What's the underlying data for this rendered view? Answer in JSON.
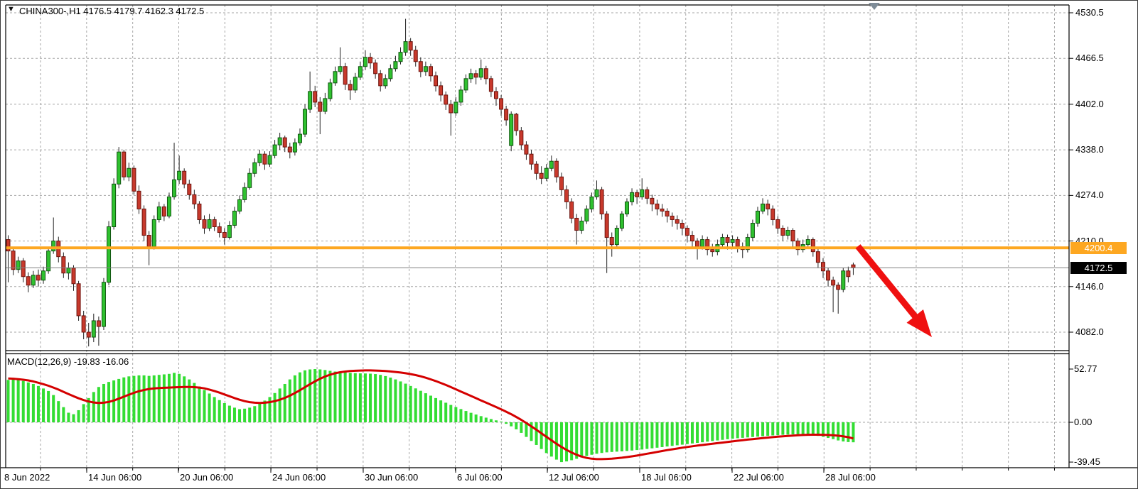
{
  "ui": {
    "title_text": "CHINA300-,H1  4176.5 4179.7 4162.3 4172.5",
    "macd_label": "MACD(12,26,9) -19.83 -16.06"
  },
  "chart_data": {
    "type": "candlestick",
    "symbol": "CHINA300-",
    "timeframe": "H1",
    "ohlc_display": {
      "open": 4176.5,
      "high": 4179.7,
      "low": 4162.3,
      "close": 4172.5
    },
    "price_axis": {
      "ticks": [
        4530.5,
        4466.5,
        4402.0,
        4338.0,
        4274.0,
        4210.0,
        4146.0,
        4082.0
      ]
    },
    "time_axis": {
      "labels": [
        "8 Jun 2022",
        "14 Jun 06:00",
        "20 Jun 06:00",
        "24 Jun 06:00",
        "30 Jun 06:00",
        "6 Jul 06:00",
        "12 Jul 06:00",
        "18 Jul 06:00",
        "22 Jul 06:00",
        "28 Jul 06:00"
      ]
    },
    "level_line": {
      "price": 4200.4,
      "label": "4200.4",
      "color": "#fda721"
    },
    "bid_line": {
      "price": 4172.5,
      "label": "4172.5",
      "color": "#808080"
    },
    "grid": true,
    "candles": [
      [
        4212,
        4218,
        4152,
        4196
      ],
      [
        4196,
        4202,
        4162,
        4170
      ],
      [
        4170,
        4188,
        4165,
        4182
      ],
      [
        4182,
        4186,
        4152,
        4160
      ],
      [
        4160,
        4166,
        4138,
        4148
      ],
      [
        4148,
        4168,
        4144,
        4162
      ],
      [
        4162,
        4170,
        4146,
        4155
      ],
      [
        4155,
        4174,
        4150,
        4168
      ],
      [
        4168,
        4200,
        4164,
        4196
      ],
      [
        4196,
        4243,
        4192,
        4210
      ],
      [
        4210,
        4216,
        4180,
        4188
      ],
      [
        4188,
        4194,
        4158,
        4165
      ],
      [
        4165,
        4180,
        4156,
        4172
      ],
      [
        4172,
        4176,
        4140,
        4150
      ],
      [
        4150,
        4154,
        4098,
        4105
      ],
      [
        4105,
        4112,
        4072,
        4082
      ],
      [
        4082,
        4095,
        4062,
        4075
      ],
      [
        4075,
        4108,
        4068,
        4098
      ],
      [
        4098,
        4104,
        4063,
        4090
      ],
      [
        4090,
        4158,
        4085,
        4152
      ],
      [
        4152,
        4238,
        4148,
        4230
      ],
      [
        4230,
        4298,
        4226,
        4290
      ],
      [
        4290,
        4342,
        4284,
        4335
      ],
      [
        4335,
        4338,
        4295,
        4300
      ],
      [
        4300,
        4320,
        4294,
        4312
      ],
      [
        4312,
        4316,
        4275,
        4280
      ],
      [
        4280,
        4288,
        4248,
        4255
      ],
      [
        4255,
        4260,
        4210,
        4218
      ],
      [
        4218,
        4224,
        4176,
        4202
      ],
      [
        4202,
        4246,
        4198,
        4240
      ],
      [
        4240,
        4265,
        4236,
        4258
      ],
      [
        4258,
        4262,
        4238,
        4245
      ],
      [
        4245,
        4278,
        4242,
        4272
      ],
      [
        4272,
        4348,
        4268,
        4296
      ],
      [
        4296,
        4330,
        4290,
        4308
      ],
      [
        4308,
        4312,
        4284,
        4290
      ],
      [
        4290,
        4296,
        4268,
        4275
      ],
      [
        4275,
        4282,
        4255,
        4262
      ],
      [
        4262,
        4266,
        4234,
        4240
      ],
      [
        4240,
        4246,
        4220,
        4228
      ],
      [
        4228,
        4248,
        4224,
        4240
      ],
      [
        4240,
        4244,
        4224,
        4230
      ],
      [
        4230,
        4236,
        4215,
        4222
      ],
      [
        4222,
        4228,
        4205,
        4215
      ],
      [
        4215,
        4238,
        4212,
        4232
      ],
      [
        4232,
        4258,
        4228,
        4252
      ],
      [
        4252,
        4274,
        4248,
        4268
      ],
      [
        4268,
        4292,
        4264,
        4285
      ],
      [
        4285,
        4312,
        4282,
        4305
      ],
      [
        4305,
        4326,
        4300,
        4320
      ],
      [
        4320,
        4338,
        4315,
        4332
      ],
      [
        4332,
        4336,
        4310,
        4318
      ],
      [
        4318,
        4336,
        4314,
        4330
      ],
      [
        4330,
        4352,
        4326,
        4345
      ],
      [
        4345,
        4362,
        4338,
        4355
      ],
      [
        4355,
        4358,
        4335,
        4342
      ],
      [
        4342,
        4348,
        4326,
        4335
      ],
      [
        4335,
        4354,
        4330,
        4348
      ],
      [
        4348,
        4368,
        4344,
        4360
      ],
      [
        4360,
        4402,
        4356,
        4395
      ],
      [
        4395,
        4448,
        4390,
        4420
      ],
      [
        4420,
        4428,
        4398,
        4405
      ],
      [
        4405,
        4412,
        4360,
        4392
      ],
      [
        4392,
        4418,
        4388,
        4410
      ],
      [
        4410,
        4438,
        4406,
        4432
      ],
      [
        4432,
        4455,
        4428,
        4448
      ],
      [
        4448,
        4482,
        4444,
        4455
      ],
      [
        4455,
        4460,
        4422,
        4430
      ],
      [
        4430,
        4436,
        4408,
        4422
      ],
      [
        4422,
        4446,
        4418,
        4440
      ],
      [
        4440,
        4462,
        4436,
        4455
      ],
      [
        4455,
        4478,
        4450,
        4468
      ],
      [
        4468,
        4474,
        4452,
        4460
      ],
      [
        4460,
        4465,
        4438,
        4445
      ],
      [
        4445,
        4450,
        4420,
        4428
      ],
      [
        4428,
        4444,
        4424,
        4438
      ],
      [
        4438,
        4458,
        4434,
        4452
      ],
      [
        4452,
        4470,
        4448,
        4462
      ],
      [
        4462,
        4482,
        4458,
        4475
      ],
      [
        4475,
        4522,
        4470,
        4490
      ],
      [
        4490,
        4495,
        4470,
        4478
      ],
      [
        4478,
        4484,
        4455,
        4462
      ],
      [
        4462,
        4468,
        4440,
        4448
      ],
      [
        4448,
        4462,
        4442,
        4455
      ],
      [
        4455,
        4459,
        4434,
        4442
      ],
      [
        4442,
        4448,
        4420,
        4428
      ],
      [
        4428,
        4434,
        4406,
        4415
      ],
      [
        4415,
        4420,
        4394,
        4402
      ],
      [
        4402,
        4408,
        4358,
        4390
      ],
      [
        4390,
        4412,
        4386,
        4405
      ],
      [
        4405,
        4428,
        4400,
        4422
      ],
      [
        4422,
        4444,
        4418,
        4438
      ],
      [
        4438,
        4452,
        4432,
        4445
      ],
      [
        4445,
        4450,
        4430,
        4440
      ],
      [
        4440,
        4465,
        4436,
        4452
      ],
      [
        4452,
        4456,
        4430,
        4438
      ],
      [
        4438,
        4442,
        4412,
        4420
      ],
      [
        4420,
        4426,
        4400,
        4410
      ],
      [
        4410,
        4415,
        4386,
        4395
      ],
      [
        4395,
        4400,
        4372,
        4380
      ],
      [
        4344,
        4392,
        4336,
        4388
      ],
      [
        4388,
        4390,
        4358,
        4365
      ],
      [
        4365,
        4370,
        4338,
        4345
      ],
      [
        4345,
        4350,
        4324,
        4332
      ],
      [
        4332,
        4338,
        4310,
        4318
      ],
      [
        4318,
        4322,
        4296,
        4305
      ],
      [
        4305,
        4315,
        4290,
        4298
      ],
      [
        4298,
        4318,
        4294,
        4312
      ],
      [
        4312,
        4330,
        4308,
        4322
      ],
      [
        4322,
        4326,
        4292,
        4300
      ],
      [
        4300,
        4306,
        4274,
        4282
      ],
      [
        4282,
        4288,
        4255,
        4265
      ],
      [
        4265,
        4270,
        4235,
        4242
      ],
      [
        4242,
        4248,
        4205,
        4225
      ],
      [
        4225,
        4244,
        4220,
        4238
      ],
      [
        4238,
        4260,
        4234,
        4255
      ],
      [
        4255,
        4278,
        4250,
        4272
      ],
      [
        4272,
        4295,
        4268,
        4282
      ],
      [
        4282,
        4286,
        4240,
        4248
      ],
      [
        4248,
        4252,
        4165,
        4215
      ],
      [
        4215,
        4222,
        4188,
        4205
      ],
      [
        4205,
        4232,
        4200,
        4228
      ],
      [
        4228,
        4252,
        4224,
        4248
      ],
      [
        4248,
        4270,
        4244,
        4265
      ],
      [
        4265,
        4284,
        4260,
        4278
      ],
      [
        4278,
        4282,
        4262,
        4272
      ],
      [
        4272,
        4298,
        4268,
        4282
      ],
      [
        4282,
        4286,
        4262,
        4270
      ],
      [
        4270,
        4275,
        4252,
        4262
      ],
      [
        4262,
        4268,
        4246,
        4255
      ],
      [
        4255,
        4262,
        4244,
        4252
      ],
      [
        4252,
        4256,
        4236,
        4245
      ],
      [
        4245,
        4250,
        4230,
        4240
      ],
      [
        4240,
        4246,
        4226,
        4235
      ],
      [
        4235,
        4240,
        4218,
        4228
      ],
      [
        4228,
        4232,
        4208,
        4218
      ],
      [
        4218,
        4224,
        4200,
        4210
      ],
      [
        4210,
        4214,
        4184,
        4202
      ],
      [
        4202,
        4218,
        4198,
        4212
      ],
      [
        4212,
        4216,
        4190,
        4198
      ],
      [
        4198,
        4206,
        4188,
        4195
      ],
      [
        4195,
        4212,
        4190,
        4205
      ],
      [
        4205,
        4220,
        4200,
        4215
      ],
      [
        4215,
        4219,
        4198,
        4208
      ],
      [
        4208,
        4218,
        4202,
        4212
      ],
      [
        4212,
        4216,
        4194,
        4202
      ],
      [
        4202,
        4208,
        4186,
        4198
      ],
      [
        4198,
        4220,
        4194,
        4215
      ],
      [
        4215,
        4240,
        4210,
        4235
      ],
      [
        4235,
        4258,
        4230,
        4252
      ],
      [
        4252,
        4270,
        4248,
        4262
      ],
      [
        4262,
        4268,
        4246,
        4255
      ],
      [
        4255,
        4260,
        4232,
        4240
      ],
      [
        4240,
        4245,
        4220,
        4228
      ],
      [
        4228,
        4232,
        4210,
        4218
      ],
      [
        4218,
        4230,
        4212,
        4225
      ],
      [
        4225,
        4228,
        4202,
        4210
      ],
      [
        4210,
        4214,
        4190,
        4198
      ],
      [
        4198,
        4212,
        4194,
        4205
      ],
      [
        4205,
        4218,
        4200,
        4212
      ],
      [
        4212,
        4215,
        4188,
        4195
      ],
      [
        4195,
        4200,
        4172,
        4180
      ],
      [
        4180,
        4186,
        4158,
        4168
      ],
      [
        4168,
        4172,
        4146,
        4155
      ],
      [
        4155,
        4160,
        4110,
        4148
      ],
      [
        4148,
        4152,
        4108,
        4142
      ],
      [
        4142,
        4172,
        4138,
        4168
      ],
      [
        4168,
        4174,
        4152,
        4160
      ],
      [
        4176.5,
        4179.7,
        4162.3,
        4172.5
      ]
    ],
    "indicator": {
      "name": "MACD(12,26,9)",
      "main_value": -19.83,
      "signal_value": -16.06,
      "axis_ticks": [
        52.77,
        0.0,
        -39.45
      ],
      "histogram": [
        42,
        42.5,
        42,
        41,
        39.5,
        38,
        36,
        33.5,
        31,
        27,
        21,
        15,
        9.5,
        8,
        12,
        18,
        24,
        30,
        35,
        38,
        40,
        41.5,
        43,
        44.5,
        45.5,
        46,
        46.5,
        46.5,
        46,
        46.5,
        47,
        47.5,
        48,
        49,
        48,
        45.5,
        42.5,
        39,
        35.5,
        32,
        28.5,
        25,
        22,
        19,
        16.5,
        14.5,
        13,
        13.5,
        14.5,
        16,
        18.5,
        21.5,
        25,
        29,
        33.5,
        38,
        42.5,
        46.5,
        49.5,
        51.5,
        52.4,
        52.77,
        52.4,
        51.8,
        51,
        50.3,
        49.8,
        49.4,
        49,
        48.7,
        48.5,
        48.4,
        48.2,
        47.8,
        47,
        45.8,
        44.3,
        42.5,
        40.5,
        38.3,
        36,
        33.6,
        31.2,
        28.8,
        26.4,
        24,
        21.7,
        19.4,
        17.2,
        15.1,
        13.1,
        11.2,
        9.4,
        7.7,
        6.1,
        4.6,
        3.2,
        1.9,
        0.7,
        -1.5,
        -4,
        -7,
        -10.5,
        -14.5,
        -18.5,
        -22.5,
        -26.5,
        -30.5,
        -34,
        -37,
        -39.45,
        -38.8,
        -37.6,
        -36.2,
        -34.8,
        -33.4,
        -32.2,
        -31.2,
        -30.4,
        -29.8,
        -29.4,
        -29.1,
        -28.8,
        -28.4,
        -28,
        -27.5,
        -27,
        -26.4,
        -25.8,
        -25.2,
        -24.6,
        -24,
        -23.4,
        -22.8,
        -22.2,
        -21.6,
        -21,
        -20.4,
        -19.8,
        -19.2,
        -18.6,
        -18,
        -17.4,
        -16.8,
        -16.3,
        -15.8,
        -15.4,
        -15,
        -14.6,
        -14.2,
        -13.8,
        -13.4,
        -13,
        -12.7,
        -12.4,
        -12.2,
        -12,
        -11.9,
        -12,
        -12.3,
        -12.8,
        -13.5,
        -14.4,
        -15.5,
        -16.7,
        -18,
        -19,
        -19.6,
        -19.83
      ],
      "signal": [
        43.5,
        43.2,
        42.8,
        42.2,
        41.5,
        40.5,
        39.2,
        37.8,
        36.2,
        34.4,
        32.4,
        30.2,
        28,
        25.8,
        23.8,
        22,
        20.6,
        19.6,
        19.2,
        19.4,
        20.2,
        21.6,
        23.4,
        25.4,
        27.4,
        29.2,
        30.8,
        32,
        33,
        33.6,
        34,
        34.2,
        34.4,
        34.6,
        34.8,
        35,
        35,
        34.8,
        34.4,
        33.6,
        32.4,
        31,
        29.4,
        27.6,
        25.8,
        24,
        22.4,
        21,
        20,
        19.4,
        19.2,
        19.4,
        20,
        21,
        22.4,
        24.2,
        26.4,
        29,
        31.8,
        34.8,
        37.8,
        40.6,
        43.2,
        45.4,
        47.2,
        48.6,
        49.6,
        50.3,
        50.8,
        51.1,
        51.3,
        51.4,
        51.4,
        51.3,
        51.1,
        50.8,
        50.4,
        49.9,
        49.3,
        48.6,
        47.8,
        46.8,
        45.6,
        44.2,
        42.6,
        40.9,
        39,
        37,
        34.9,
        32.7,
        30.5,
        28.3,
        26.1,
        23.9,
        21.7,
        19.5,
        17.3,
        15.1,
        12.9,
        10.5,
        8,
        5.3,
        2.4,
        -0.7,
        -4,
        -7.4,
        -10.9,
        -14.4,
        -17.9,
        -21.3,
        -24.5,
        -27.4,
        -30,
        -32.2,
        -34,
        -35.3,
        -36.1,
        -36.5,
        -36.5,
        -36.3,
        -36,
        -35.6,
        -35.1,
        -34.5,
        -33.8,
        -33,
        -32.1,
        -31.2,
        -30.3,
        -29.4,
        -28.5,
        -27.6,
        -26.8,
        -26,
        -25.2,
        -24.5,
        -23.8,
        -23.1,
        -22.5,
        -21.9,
        -21.3,
        -20.7,
        -20.1,
        -19.5,
        -18.9,
        -18.3,
        -17.7,
        -17.2,
        -16.7,
        -16.2,
        -15.7,
        -15.2,
        -14.7,
        -14.3,
        -13.9,
        -13.5,
        -13.2,
        -12.9,
        -12.6,
        -12.4,
        -12.3,
        -12.3,
        -12.4,
        -12.6,
        -12.9,
        -13.3,
        -13.9,
        -14.8,
        -16.06
      ]
    },
    "annotation_arrow": {
      "direction": "down-right",
      "color": "#ef1010"
    },
    "colors": {
      "bull_fill": "#2fc12f",
      "bull_border": "#115511",
      "bear_fill": "#c8392c",
      "bear_border": "#6d140e",
      "wick": "#222222",
      "macd_bar": "#33dd33",
      "macd_signal": "#d40000",
      "grid": "#a6a6a6",
      "frame": "#000000",
      "level_line": "#fda721",
      "bid_line": "#808080",
      "shift_marker": "#7e8c98"
    }
  }
}
